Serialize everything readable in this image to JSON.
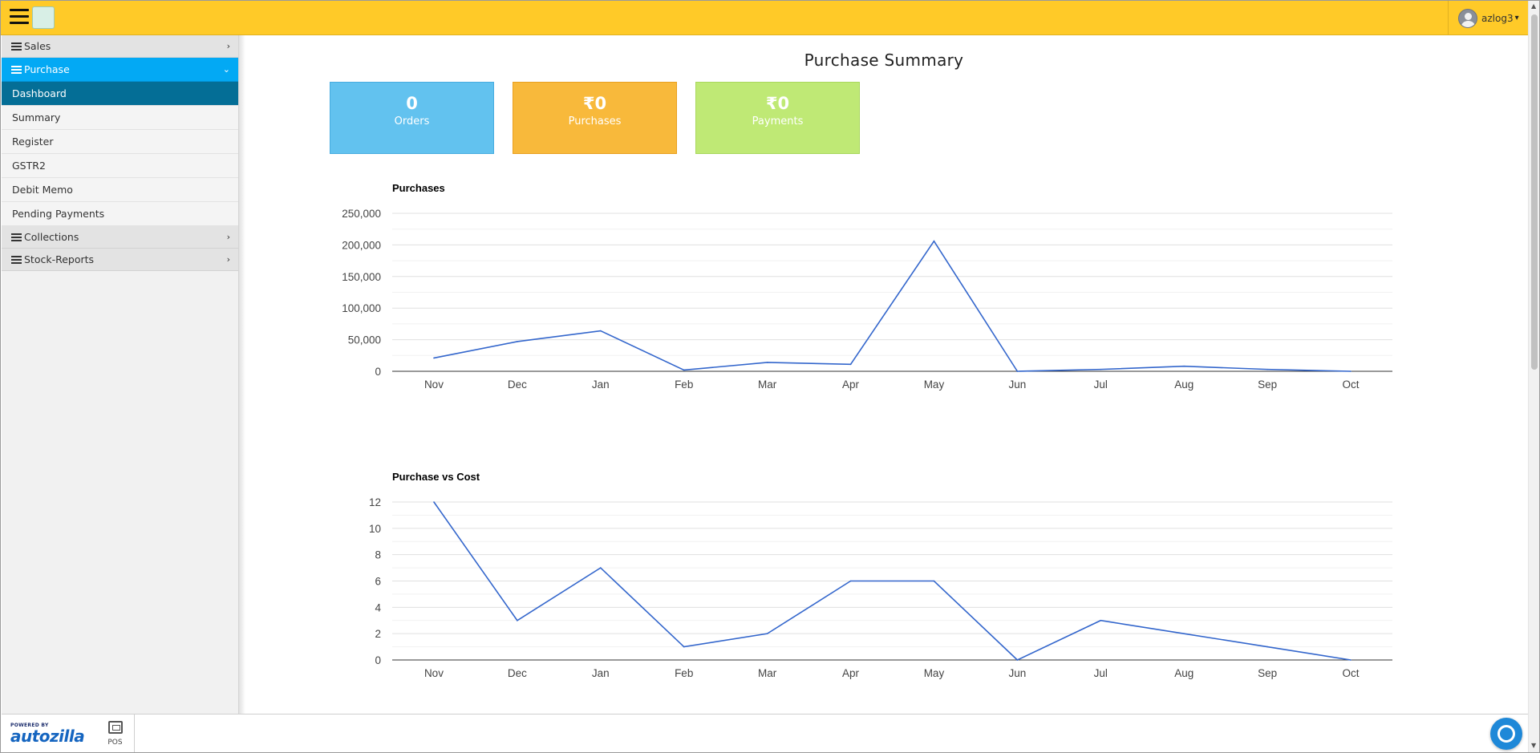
{
  "topbar": {
    "username": "azlog3"
  },
  "sidebar": {
    "groups": [
      {
        "label": "Sales"
      },
      {
        "label": "Purchase",
        "items": [
          "Dashboard",
          "Summary",
          "Register",
          "GSTR2",
          "Debit Memo",
          "Pending Payments"
        ]
      },
      {
        "label": "Collections"
      },
      {
        "label": "Stock-Reports"
      }
    ]
  },
  "page": {
    "title": "Purchase Summary"
  },
  "cards": [
    {
      "value": "0",
      "label": "Orders"
    },
    {
      "value": "₹0",
      "label": "Purchases"
    },
    {
      "value": "₹0",
      "label": "Payments"
    }
  ],
  "chart_data": [
    {
      "type": "line",
      "title": "Purchases",
      "categories": [
        "Nov",
        "Dec",
        "Jan",
        "Feb",
        "Mar",
        "Apr",
        "May",
        "Jun",
        "Jul",
        "Aug",
        "Sep",
        "Oct"
      ],
      "values": [
        21000,
        47000,
        64000,
        2000,
        14000,
        11000,
        206000,
        0,
        3000,
        8000,
        3000,
        0
      ],
      "ylim": [
        0,
        250000
      ],
      "yticks": [
        "0",
        "50,000",
        "100,000",
        "150,000",
        "200,000",
        "250,000"
      ],
      "grid": true,
      "color": "#3366cc"
    },
    {
      "type": "line",
      "title": "Purchase vs Cost",
      "categories": [
        "Nov",
        "Dec",
        "Jan",
        "Feb",
        "Mar",
        "Apr",
        "May",
        "Jun",
        "Jul",
        "Aug",
        "Sep",
        "Oct"
      ],
      "values": [
        12,
        3,
        7,
        1,
        2,
        6,
        6,
        0,
        3,
        2,
        1,
        0
      ],
      "ylim": [
        0,
        12
      ],
      "yticks": [
        "0",
        "2",
        "4",
        "6",
        "8",
        "10",
        "12"
      ],
      "grid": true,
      "color": "#3366cc"
    }
  ],
  "footer": {
    "brand_small": "POWERED BY",
    "brand_name": "autozilla",
    "pos_label": "POS"
  },
  "colors": {
    "topbar": "#ffca28",
    "active_group": "#03a9f4",
    "active_item": "#046e96",
    "line": "#3366cc"
  }
}
